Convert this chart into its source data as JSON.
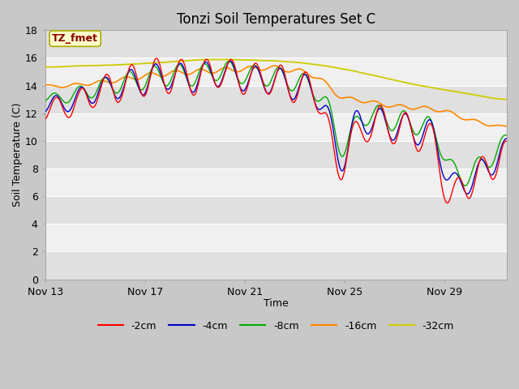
{
  "title": "Tonzi Soil Temperatures Set C",
  "xlabel": "Time",
  "ylabel": "Soil Temperature (C)",
  "ylim": [
    0,
    18
  ],
  "yticks": [
    0,
    2,
    4,
    6,
    8,
    10,
    12,
    14,
    16,
    18
  ],
  "annotation_text": "TZ_fmet",
  "annotation_color": "#880000",
  "annotation_bg": "#ffffcc",
  "annotation_edge": "#aaaa00",
  "fig_bg": "#c8c8c8",
  "plot_bg_light": "#f0f0f0",
  "plot_bg_dark": "#e0e0e0",
  "line_colors": {
    "-2cm": "#ff0000",
    "-4cm": "#0000cc",
    "-8cm": "#00aa00",
    "-16cm": "#ff8800",
    "-32cm": "#cccc00"
  },
  "legend_labels": [
    "-2cm",
    "-4cm",
    "-8cm",
    "-16cm",
    "-32cm"
  ],
  "x_tick_labels": [
    "Nov 13",
    "Nov 17",
    "Nov 21",
    "Nov 25",
    "Nov 29"
  ],
  "x_tick_positions": [
    0,
    4,
    8,
    12,
    16
  ],
  "total_days": 18.5,
  "num_points": 444
}
